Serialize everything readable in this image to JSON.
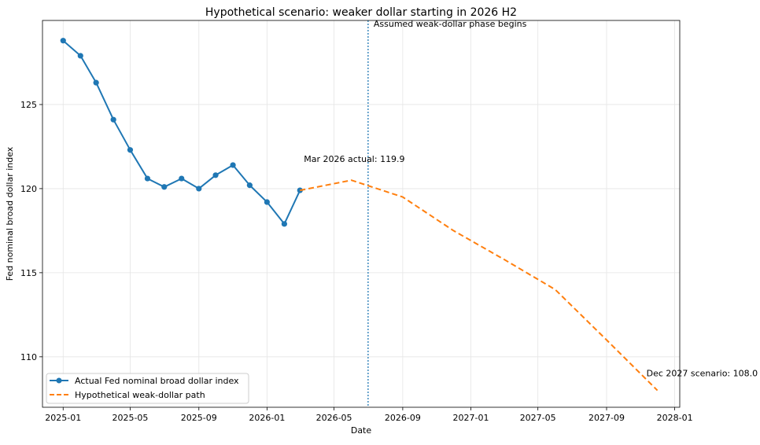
{
  "chart_data": {
    "type": "line",
    "title": "Hypothetical scenario: weaker dollar starting in 2026 H2",
    "xlabel": "Date",
    "ylabel": "Fed nominal broad dollar index",
    "xlim": [
      "2024-11-25",
      "2028-01-10"
    ],
    "ylim": [
      107,
      130
    ],
    "grid": true,
    "legend_position": "lower-left",
    "x_ticks": [
      {
        "date": "2025-01-01",
        "label": "2025-01"
      },
      {
        "date": "2025-05-01",
        "label": "2025-05"
      },
      {
        "date": "2025-09-01",
        "label": "2025-09"
      },
      {
        "date": "2026-01-01",
        "label": "2026-01"
      },
      {
        "date": "2026-05-01",
        "label": "2026-05"
      },
      {
        "date": "2026-09-01",
        "label": "2026-09"
      },
      {
        "date": "2027-01-01",
        "label": "2027-01"
      },
      {
        "date": "2027-05-01",
        "label": "2027-05"
      },
      {
        "date": "2027-09-01",
        "label": "2027-09"
      },
      {
        "date": "2028-01-01",
        "label": "2028-01"
      }
    ],
    "y_ticks": [
      {
        "value": 110,
        "label": "110"
      },
      {
        "value": 115,
        "label": "115"
      },
      {
        "value": 120,
        "label": "120"
      },
      {
        "value": 125,
        "label": "125"
      }
    ],
    "series": [
      {
        "name": "Actual Fed nominal broad dollar index",
        "color": "#1f77b4",
        "style": "solid",
        "marker": "circle",
        "x": [
          "2025-01-01",
          "2025-02-01",
          "2025-03-01",
          "2025-04-01",
          "2025-05-01",
          "2025-06-01",
          "2025-07-01",
          "2025-08-01",
          "2025-09-01",
          "2025-10-01",
          "2025-11-01",
          "2025-12-01",
          "2026-01-01",
          "2026-02-01",
          "2026-03-01"
        ],
        "y": [
          128.8,
          127.9,
          126.3,
          124.1,
          122.3,
          120.6,
          120.1,
          120.6,
          120.0,
          120.8,
          121.4,
          120.2,
          119.2,
          117.9,
          119.9
        ]
      },
      {
        "name": "Hypothetical weak-dollar path",
        "color": "#ff7f0e",
        "style": "dashed",
        "marker": "none",
        "x": [
          "2026-03-01",
          "2026-06-01",
          "2026-09-01",
          "2026-12-01",
          "2027-03-01",
          "2027-06-01",
          "2027-09-01",
          "2027-12-01"
        ],
        "y": [
          119.9,
          120.5,
          119.5,
          117.5,
          115.8,
          114.0,
          111.0,
          108.0
        ]
      }
    ],
    "vline": {
      "x": "2026-07-01",
      "color": "#1f77b4",
      "style": "dotted",
      "label": "Assumed weak-dollar phase begins"
    },
    "annotations": [
      {
        "text": "Mar 2026 actual: 119.9",
        "x": "2026-03-01",
        "y": 119.9
      },
      {
        "text": "Dec 2027 scenario: 108.0",
        "x": "2027-12-01",
        "y": 108.0
      }
    ]
  }
}
